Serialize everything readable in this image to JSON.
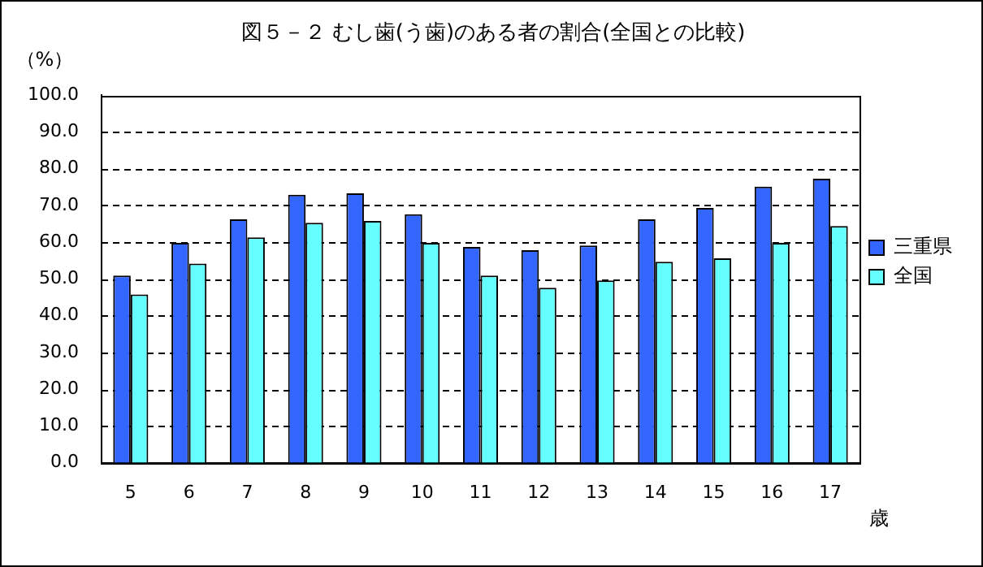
{
  "chart_data": {
    "type": "bar",
    "title": "図５－２ むし歯(う歯)のある者の割合(全国との比較)",
    "ylabel": "（%）",
    "xlabel": "歳",
    "categories": [
      "5",
      "6",
      "7",
      "8",
      "9",
      "10",
      "11",
      "12",
      "13",
      "14",
      "15",
      "16",
      "17"
    ],
    "series": [
      {
        "name": "三重県",
        "color": "#3366ff",
        "values": [
          50.9,
          59.8,
          66.2,
          72.9,
          73.3,
          67.6,
          58.7,
          57.8,
          59.1,
          66.2,
          69.3,
          75.1,
          77.3
        ]
      },
      {
        "name": "全国",
        "color": "#66ffff",
        "values": [
          45.8,
          54.2,
          61.3,
          65.3,
          65.8,
          59.8,
          50.9,
          47.6,
          49.6,
          54.7,
          55.6,
          59.8,
          64.4
        ]
      }
    ],
    "ylim": [
      0,
      100
    ],
    "yticks": [
      {
        "value": 0,
        "label": "0.0"
      },
      {
        "value": 10,
        "label": "10.0"
      },
      {
        "value": 20,
        "label": "20.0"
      },
      {
        "value": 30,
        "label": "30.0"
      },
      {
        "value": 40,
        "label": "40.0"
      },
      {
        "value": 50,
        "label": "50.0"
      },
      {
        "value": 60,
        "label": "60.0"
      },
      {
        "value": 70,
        "label": "70.0"
      },
      {
        "value": 80,
        "label": "80.0"
      },
      {
        "value": 90,
        "label": "90.0"
      },
      {
        "value": 100,
        "label": "100.0"
      }
    ],
    "grid": "y",
    "legend": "right"
  }
}
